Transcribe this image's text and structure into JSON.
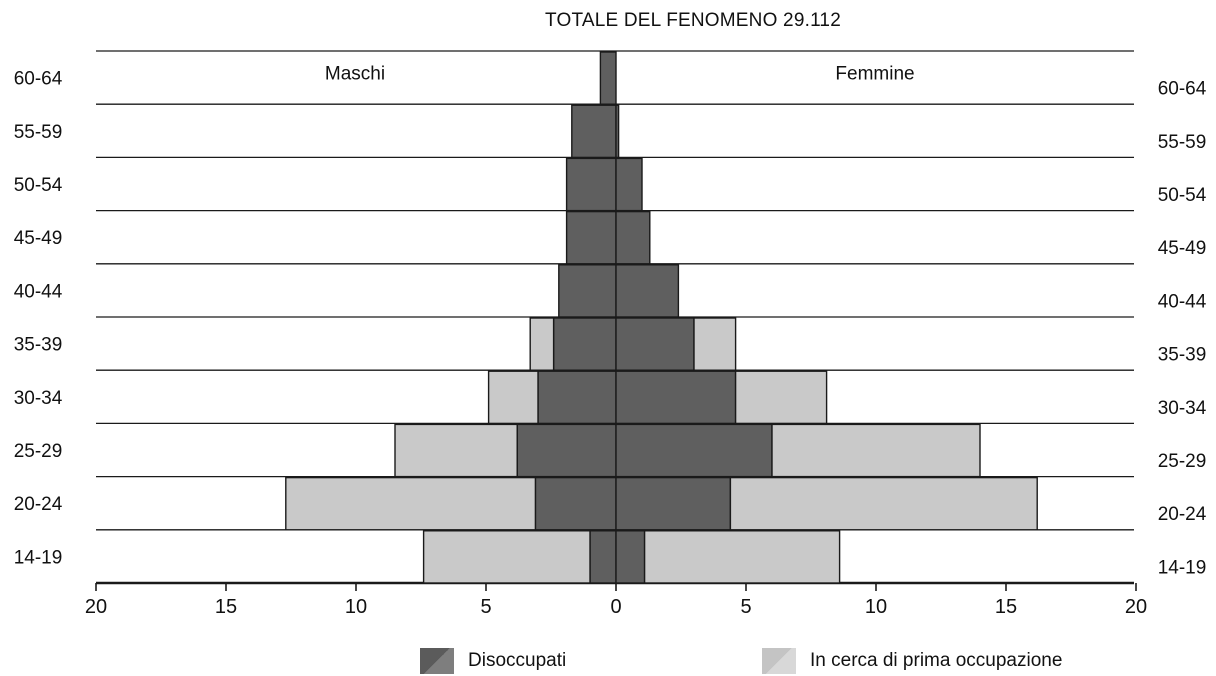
{
  "colors": {
    "unemployed": "#5f5f5f",
    "first_job": "#c9c9c9",
    "line": "#1a1a1a"
  },
  "chart_data": {
    "type": "bar",
    "title": "TOTALE DEL FENOMENO 29.112",
    "side_labels": {
      "left": "Maschi",
      "right": "Femmine"
    },
    "categories": [
      "14-19",
      "20-24",
      "25-29",
      "30-34",
      "35-39",
      "40-44",
      "45-49",
      "50-54",
      "55-59",
      "60-64"
    ],
    "series": [
      {
        "name": "Disoccupati",
        "key": "unemployed",
        "male": [
          1.0,
          3.1,
          3.8,
          3.0,
          2.4,
          2.2,
          1.9,
          1.9,
          1.7,
          0.6
        ],
        "female": [
          1.1,
          4.4,
          6.0,
          4.6,
          3.0,
          2.4,
          1.3,
          1.0,
          0.1,
          0.0
        ]
      },
      {
        "name": "In cerca di prima occupazione",
        "key": "first_job",
        "male": [
          6.4,
          9.6,
          4.7,
          1.9,
          0.9,
          0.0,
          0.0,
          0.0,
          0.0,
          0.0
        ],
        "female": [
          7.5,
          11.8,
          8.0,
          3.5,
          1.6,
          0.0,
          0.0,
          0.0,
          0.0,
          0.0
        ]
      }
    ],
    "x_ticks": [
      20,
      15,
      10,
      5,
      0,
      5,
      10,
      15,
      20
    ],
    "xlim": [
      -20,
      20
    ],
    "grid": true,
    "legend_position": "bottom"
  }
}
